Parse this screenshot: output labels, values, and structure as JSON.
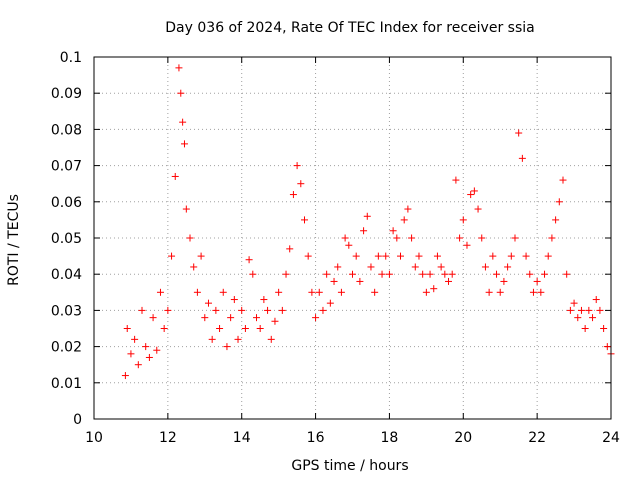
{
  "chart_data": {
    "type": "scatter",
    "title": "Day 036 of 2024, Rate Of TEC Index for receiver ssia",
    "xlabel": "GPS time / hours",
    "ylabel": "ROTI / TECUs",
    "xlim": [
      10,
      24
    ],
    "ylim": [
      0,
      0.1
    ],
    "x_ticks": [
      10,
      12,
      14,
      16,
      18,
      20,
      22,
      24
    ],
    "x_tick_labels": [
      "10",
      "12",
      "14",
      "16",
      "18",
      "20",
      "22",
      "24"
    ],
    "y_ticks": [
      0,
      0.01,
      0.02,
      0.03,
      0.04,
      0.05,
      0.06,
      0.07,
      0.08,
      0.09,
      0.1
    ],
    "y_tick_labels": [
      "0",
      "0.01",
      "0.02",
      "0.03",
      "0.04",
      "0.05",
      "0.06",
      "0.07",
      "0.08",
      "0.09",
      "0.1"
    ],
    "grid": true,
    "marker": "+",
    "color": "#ff0000",
    "series": [
      {
        "name": "ROTI",
        "x": [
          10.85,
          10.9,
          11.0,
          11.1,
          11.2,
          11.3,
          11.4,
          11.5,
          11.6,
          11.7,
          11.8,
          11.9,
          12.0,
          12.1,
          12.2,
          12.3,
          12.35,
          12.4,
          12.45,
          12.5,
          12.6,
          12.7,
          12.8,
          12.9,
          13.0,
          13.1,
          13.2,
          13.3,
          13.4,
          13.5,
          13.6,
          13.7,
          13.8,
          13.9,
          14.0,
          14.1,
          14.2,
          14.3,
          14.4,
          14.5,
          14.6,
          14.7,
          14.8,
          14.9,
          15.0,
          15.1,
          15.2,
          15.3,
          15.4,
          15.5,
          15.6,
          15.7,
          15.8,
          15.9,
          16.0,
          16.1,
          16.2,
          16.3,
          16.4,
          16.5,
          16.6,
          16.7,
          16.8,
          16.9,
          17.0,
          17.1,
          17.2,
          17.3,
          17.4,
          17.5,
          17.6,
          17.7,
          17.8,
          17.9,
          18.0,
          18.1,
          18.2,
          18.3,
          18.4,
          18.5,
          18.6,
          18.7,
          18.8,
          18.9,
          19.0,
          19.1,
          19.2,
          19.3,
          19.4,
          19.5,
          19.6,
          19.7,
          19.8,
          19.9,
          20.0,
          20.1,
          20.2,
          20.3,
          20.4,
          20.5,
          20.6,
          20.7,
          20.8,
          20.9,
          21.0,
          21.1,
          21.2,
          21.3,
          21.4,
          21.5,
          21.6,
          21.7,
          21.8,
          21.9,
          22.0,
          22.1,
          22.2,
          22.3,
          22.4,
          22.5,
          22.6,
          22.7,
          22.8,
          22.9,
          23.0,
          23.1,
          23.2,
          23.3,
          23.4,
          23.5,
          23.6,
          23.7,
          23.8,
          23.9,
          24.0
        ],
        "y": [
          0.012,
          0.025,
          0.018,
          0.022,
          0.015,
          0.03,
          0.02,
          0.017,
          0.028,
          0.019,
          0.035,
          0.025,
          0.03,
          0.045,
          0.067,
          0.097,
          0.09,
          0.082,
          0.076,
          0.058,
          0.05,
          0.042,
          0.035,
          0.045,
          0.028,
          0.032,
          0.022,
          0.03,
          0.025,
          0.035,
          0.02,
          0.028,
          0.033,
          0.022,
          0.03,
          0.025,
          0.044,
          0.04,
          0.028,
          0.025,
          0.033,
          0.03,
          0.022,
          0.027,
          0.035,
          0.03,
          0.04,
          0.047,
          0.062,
          0.07,
          0.065,
          0.055,
          0.045,
          0.035,
          0.028,
          0.035,
          0.03,
          0.04,
          0.032,
          0.038,
          0.042,
          0.035,
          0.05,
          0.048,
          0.04,
          0.045,
          0.038,
          0.052,
          0.056,
          0.042,
          0.035,
          0.045,
          0.04,
          0.045,
          0.04,
          0.052,
          0.05,
          0.045,
          0.055,
          0.058,
          0.05,
          0.042,
          0.045,
          0.04,
          0.035,
          0.04,
          0.036,
          0.045,
          0.042,
          0.04,
          0.038,
          0.04,
          0.066,
          0.05,
          0.055,
          0.048,
          0.062,
          0.063,
          0.058,
          0.05,
          0.042,
          0.035,
          0.045,
          0.04,
          0.035,
          0.038,
          0.042,
          0.045,
          0.05,
          0.079,
          0.072,
          0.045,
          0.04,
          0.035,
          0.038,
          0.035,
          0.04,
          0.045,
          0.05,
          0.055,
          0.06,
          0.066,
          0.04,
          0.03,
          0.032,
          0.028,
          0.03,
          0.025,
          0.03,
          0.028,
          0.033,
          0.03,
          0.025,
          0.02,
          0.018
        ]
      }
    ]
  }
}
